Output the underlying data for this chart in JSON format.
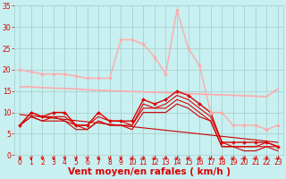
{
  "xlabel": "Vent moyen/en rafales ( km/h )",
  "xlim": [
    -0.5,
    23.5
  ],
  "ylim": [
    0,
    35
  ],
  "yticks": [
    0,
    5,
    10,
    15,
    20,
    25,
    30,
    35
  ],
  "xticks": [
    0,
    1,
    2,
    3,
    4,
    5,
    6,
    7,
    8,
    9,
    10,
    11,
    12,
    13,
    14,
    15,
    16,
    17,
    18,
    19,
    20,
    21,
    22,
    23
  ],
  "bg_color": "#c8f0f0",
  "grid_color": "#a8d0d0",
  "series": [
    {
      "x": [
        0,
        1,
        2,
        3,
        4,
        5,
        6,
        7,
        8,
        9,
        10,
        11,
        12,
        13,
        14,
        15,
        16,
        17,
        18,
        19,
        20,
        21,
        22,
        23
      ],
      "y": [
        20,
        19.5,
        19,
        19,
        19,
        18.5,
        18,
        18,
        18,
        27,
        27,
        26,
        23,
        19,
        34,
        25,
        21,
        10,
        10,
        7,
        7,
        7,
        6,
        7
      ],
      "color": "#ffaaaa",
      "linewidth": 1.0,
      "marker": "D",
      "markersize": 2.0,
      "zorder": 6
    },
    {
      "x": [
        0,
        1,
        2,
        3,
        4,
        5,
        6,
        7,
        8,
        9,
        10,
        11,
        12,
        13,
        14,
        15,
        16,
        17,
        18,
        19,
        20,
        21,
        22,
        23
      ],
      "y": [
        16,
        16,
        15.8,
        15.7,
        15.6,
        15.5,
        15.3,
        15.2,
        15.1,
        15.0,
        14.9,
        14.8,
        14.7,
        14.6,
        14.5,
        14.4,
        14.3,
        14.2,
        14.1,
        14.0,
        13.9,
        13.8,
        13.7,
        15.5
      ],
      "color": "#ffaaaa",
      "linewidth": 1.2,
      "marker": null,
      "markersize": 0,
      "zorder": 2
    },
    {
      "x": [
        0,
        1,
        2,
        3,
        4,
        5,
        6,
        7,
        8,
        9,
        10,
        11,
        12,
        13,
        14,
        15,
        16,
        17,
        18,
        19,
        20,
        21,
        22,
        23
      ],
      "y": [
        7,
        10,
        9,
        10,
        10,
        7,
        7,
        10,
        8,
        8,
        8,
        13,
        12,
        13,
        15,
        14,
        12,
        10,
        3,
        3,
        3,
        3,
        3,
        2
      ],
      "color": "#dd0000",
      "linewidth": 1.0,
      "marker": "D",
      "markersize": 2.0,
      "zorder": 5
    },
    {
      "x": [
        0,
        1,
        2,
        3,
        4,
        5,
        6,
        7,
        8,
        9,
        10,
        11,
        12,
        13,
        14,
        15,
        16,
        17,
        18,
        19,
        20,
        21,
        22,
        23
      ],
      "y": [
        7,
        10,
        9,
        9,
        9,
        7,
        7,
        9,
        8,
        8,
        7,
        12,
        11,
        12,
        14,
        13,
        11,
        9,
        3,
        2,
        2,
        2,
        3,
        2
      ],
      "color": "#dd0000",
      "linewidth": 0.8,
      "marker": null,
      "markersize": 0,
      "zorder": 4
    },
    {
      "x": [
        0,
        1,
        2,
        3,
        4,
        5,
        6,
        7,
        8,
        9,
        10,
        11,
        12,
        13,
        14,
        15,
        16,
        17,
        18,
        19,
        20,
        21,
        22,
        23
      ],
      "y": [
        7,
        9,
        8,
        9,
        8,
        7,
        6,
        8,
        7,
        7,
        7,
        11,
        11,
        11,
        13,
        12,
        10,
        8,
        2,
        2,
        2,
        2,
        2,
        2
      ],
      "color": "#dd0000",
      "linewidth": 0.8,
      "marker": null,
      "markersize": 0,
      "zorder": 3
    },
    {
      "x": [
        0,
        1,
        2,
        3,
        4,
        5,
        6,
        7,
        8,
        9,
        10,
        11,
        12,
        13,
        14,
        15,
        16,
        17,
        18,
        19,
        20,
        21,
        22,
        23
      ],
      "y": [
        7,
        9,
        8,
        8,
        8,
        6,
        6,
        8,
        7,
        7,
        6,
        10,
        10,
        10,
        12,
        11,
        9,
        8,
        2,
        2,
        1,
        1,
        2,
        1
      ],
      "color": "#cc0000",
      "linewidth": 0.8,
      "marker": null,
      "markersize": 0,
      "zorder": 3
    },
    {
      "x": [
        0,
        23
      ],
      "y": [
        9.5,
        3.0
      ],
      "color": "#cc0000",
      "linewidth": 0.8,
      "marker": null,
      "markersize": 0,
      "zorder": 2
    }
  ],
  "arrow_color": "#dd0000",
  "tick_label_color": "#dd0000",
  "axis_label_color": "#dd0000",
  "tick_label_fontsize": 5.5,
  "axis_label_fontsize": 7.5,
  "axis_label_fontweight": "bold"
}
